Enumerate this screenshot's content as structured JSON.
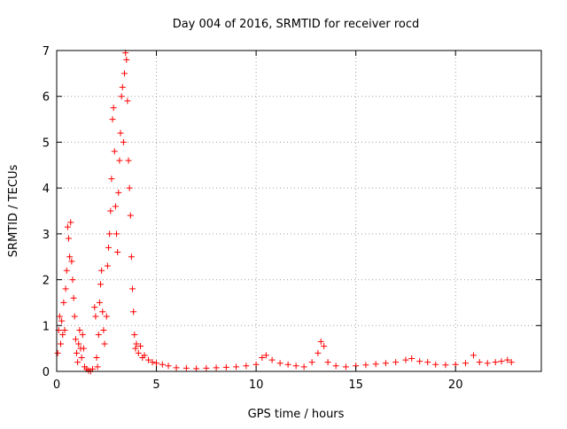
{
  "chart_data": {
    "type": "scatter",
    "title": "Day 004 of 2016, SRMTID for receiver rocd",
    "xlabel": "GPS time / hours",
    "ylabel": "SRMTID / TECUs",
    "xlim": [
      0,
      24.3
    ],
    "ylim": [
      0,
      7
    ],
    "x_ticks": [
      0,
      5,
      10,
      15,
      20
    ],
    "x_tick_labels": [
      "0",
      "5",
      "10",
      "15",
      "20"
    ],
    "y_ticks": [
      0,
      1,
      2,
      3,
      4,
      5,
      6,
      7
    ],
    "y_tick_labels": [
      "0",
      "1",
      "2",
      "3",
      "4",
      "5",
      "6",
      "7"
    ],
    "grid": true,
    "marker": "plus",
    "colors": {
      "marker": "#ff0000",
      "grid": "#a0a0a0",
      "axis": "#000000"
    },
    "series": [
      {
        "name": "SRMTID",
        "points": [
          [
            0.05,
            0.4
          ],
          [
            0.1,
            0.9
          ],
          [
            0.15,
            1.2
          ],
          [
            0.2,
            0.6
          ],
          [
            0.25,
            1.1
          ],
          [
            0.3,
            0.8
          ],
          [
            0.35,
            1.5
          ],
          [
            0.4,
            0.9
          ],
          [
            0.45,
            1.8
          ],
          [
            0.5,
            2.2
          ],
          [
            0.55,
            3.15
          ],
          [
            0.6,
            2.9
          ],
          [
            0.65,
            2.5
          ],
          [
            0.7,
            3.25
          ],
          [
            0.75,
            2.4
          ],
          [
            0.8,
            2.0
          ],
          [
            0.85,
            1.6
          ],
          [
            0.9,
            1.2
          ],
          [
            0.95,
            0.7
          ],
          [
            1.0,
            0.4
          ],
          [
            1.05,
            0.2
          ],
          [
            1.1,
            0.6
          ],
          [
            1.15,
            0.9
          ],
          [
            1.2,
            0.5
          ],
          [
            1.25,
            0.3
          ],
          [
            1.3,
            0.8
          ],
          [
            1.35,
            0.5
          ],
          [
            1.4,
            0.1
          ],
          [
            1.5,
            0.05
          ],
          [
            1.6,
            0.02
          ],
          [
            1.7,
            0.0
          ],
          [
            1.8,
            0.05
          ],
          [
            1.9,
            1.4
          ],
          [
            1.95,
            1.2
          ],
          [
            2.0,
            0.3
          ],
          [
            2.05,
            0.1
          ],
          [
            2.1,
            0.8
          ],
          [
            2.15,
            1.5
          ],
          [
            2.2,
            1.9
          ],
          [
            2.25,
            2.2
          ],
          [
            2.3,
            1.3
          ],
          [
            2.35,
            0.9
          ],
          [
            2.4,
            0.6
          ],
          [
            2.5,
            1.2
          ],
          [
            2.55,
            2.3
          ],
          [
            2.6,
            2.7
          ],
          [
            2.65,
            3.0
          ],
          [
            2.7,
            3.5
          ],
          [
            2.75,
            4.2
          ],
          [
            2.8,
            5.5
          ],
          [
            2.85,
            5.75
          ],
          [
            2.9,
            4.8
          ],
          [
            2.95,
            3.6
          ],
          [
            3.0,
            3.0
          ],
          [
            3.05,
            2.6
          ],
          [
            3.1,
            3.9
          ],
          [
            3.15,
            4.6
          ],
          [
            3.2,
            5.2
          ],
          [
            3.25,
            6.0
          ],
          [
            3.3,
            6.2
          ],
          [
            3.35,
            5.0
          ],
          [
            3.4,
            6.5
          ],
          [
            3.45,
            6.95
          ],
          [
            3.5,
            6.8
          ],
          [
            3.55,
            5.9
          ],
          [
            3.6,
            4.6
          ],
          [
            3.65,
            4.0
          ],
          [
            3.7,
            3.4
          ],
          [
            3.75,
            2.5
          ],
          [
            3.8,
            1.8
          ],
          [
            3.85,
            1.3
          ],
          [
            3.9,
            0.8
          ],
          [
            3.95,
            0.5
          ],
          [
            4.0,
            0.6
          ],
          [
            4.1,
            0.4
          ],
          [
            4.2,
            0.55
          ],
          [
            4.3,
            0.3
          ],
          [
            4.4,
            0.35
          ],
          [
            4.6,
            0.25
          ],
          [
            4.8,
            0.2
          ],
          [
            5.0,
            0.18
          ],
          [
            5.3,
            0.15
          ],
          [
            5.6,
            0.12
          ],
          [
            6.0,
            0.08
          ],
          [
            6.5,
            0.07
          ],
          [
            7.0,
            0.06
          ],
          [
            7.5,
            0.07
          ],
          [
            8.0,
            0.08
          ],
          [
            8.5,
            0.09
          ],
          [
            9.0,
            0.1
          ],
          [
            9.5,
            0.12
          ],
          [
            10.0,
            0.15
          ],
          [
            10.3,
            0.3
          ],
          [
            10.5,
            0.35
          ],
          [
            10.8,
            0.25
          ],
          [
            11.2,
            0.18
          ],
          [
            11.6,
            0.15
          ],
          [
            12.0,
            0.12
          ],
          [
            12.4,
            0.1
          ],
          [
            12.8,
            0.2
          ],
          [
            13.1,
            0.4
          ],
          [
            13.25,
            0.65
          ],
          [
            13.4,
            0.55
          ],
          [
            13.6,
            0.2
          ],
          [
            14.0,
            0.12
          ],
          [
            14.5,
            0.1
          ],
          [
            15.0,
            0.12
          ],
          [
            15.5,
            0.14
          ],
          [
            16.0,
            0.16
          ],
          [
            16.5,
            0.18
          ],
          [
            17.0,
            0.2
          ],
          [
            17.5,
            0.25
          ],
          [
            17.8,
            0.28
          ],
          [
            18.2,
            0.22
          ],
          [
            18.6,
            0.2
          ],
          [
            19.0,
            0.15
          ],
          [
            19.5,
            0.14
          ],
          [
            20.0,
            0.15
          ],
          [
            20.5,
            0.18
          ],
          [
            20.9,
            0.35
          ],
          [
            21.2,
            0.2
          ],
          [
            21.6,
            0.18
          ],
          [
            22.0,
            0.2
          ],
          [
            22.3,
            0.22
          ],
          [
            22.6,
            0.25
          ],
          [
            22.8,
            0.2
          ]
        ]
      }
    ]
  }
}
